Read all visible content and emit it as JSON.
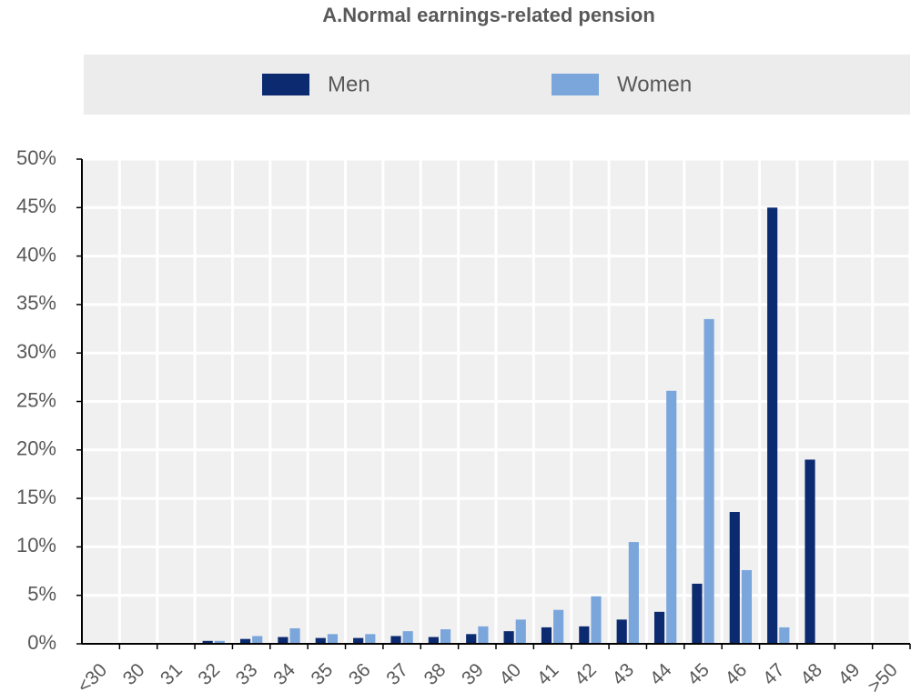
{
  "chart_data": {
    "type": "bar",
    "title": "A.Normal earnings-related pension",
    "categories": [
      "<30",
      "30",
      "31",
      "32",
      "33",
      "34",
      "35",
      "36",
      "37",
      "38",
      "39",
      "40",
      "41",
      "42",
      "43",
      "44",
      "45",
      "46",
      "47",
      "48",
      "49",
      ">50"
    ],
    "series": [
      {
        "name": "Men",
        "color": "#0b2a6f",
        "values": [
          0,
          0,
          0,
          0.3,
          0.5,
          0.7,
          0.6,
          0.6,
          0.8,
          0.7,
          1.0,
          1.3,
          1.7,
          1.8,
          2.5,
          3.3,
          6.2,
          13.6,
          45,
          19,
          0,
          0
        ]
      },
      {
        "name": "Women",
        "color": "#7aa6dc",
        "values": [
          0,
          0,
          0,
          0.3,
          0.8,
          1.6,
          1.0,
          1.0,
          1.3,
          1.5,
          1.8,
          2.5,
          3.5,
          4.9,
          10.5,
          26.1,
          33.5,
          7.6,
          1.7,
          0,
          0,
          0
        ]
      }
    ],
    "ylim": [
      0,
      50
    ],
    "yticks": [
      {
        "value": 0,
        "label": "0%"
      },
      {
        "value": 5,
        "label": "5%"
      },
      {
        "value": 10,
        "label": "10%"
      },
      {
        "value": 15,
        "label": "15%"
      },
      {
        "value": 20,
        "label": "20%"
      },
      {
        "value": 25,
        "label": "25%"
      },
      {
        "value": 30,
        "label": "30%"
      },
      {
        "value": 35,
        "label": "35%"
      },
      {
        "value": 40,
        "label": "40%"
      },
      {
        "value": 45,
        "label": "45%"
      },
      {
        "value": 50,
        "label": "50%"
      }
    ],
    "grid": true
  }
}
